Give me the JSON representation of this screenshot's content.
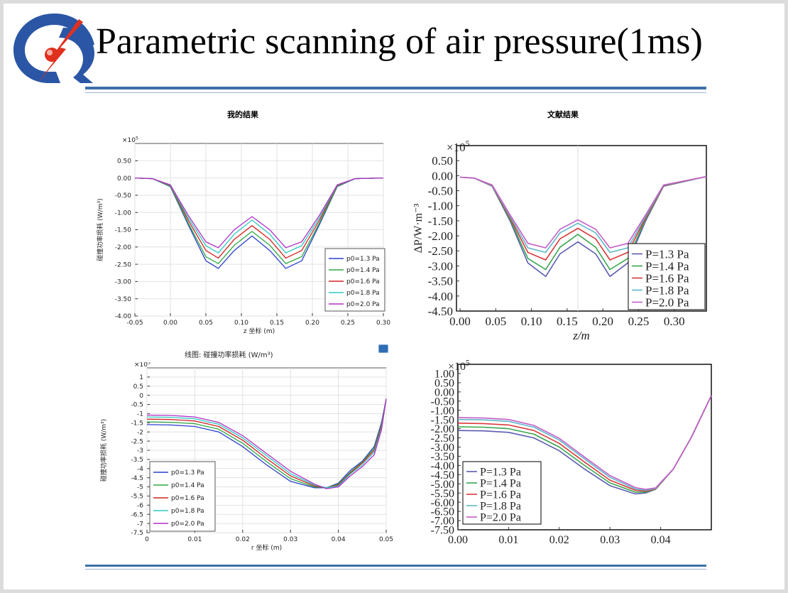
{
  "title": "Parametric scanning of air pressure(1ms)",
  "headings": {
    "left": "我的结果",
    "right": "文献结果"
  },
  "caption_top_left": "线图: 碰撞功率损耗 (W/m³)",
  "colors": {
    "rule": "#3f6fa8",
    "logo_blue": "#2b56a6",
    "logo_red": "#e0301e"
  },
  "chart_data": [
    {
      "type": "line",
      "id": "top-left",
      "multiplier": "×10",
      "multiplier_exp": "5",
      "xlabel": "z 坐标 (m)",
      "ylabel": "碰撞功率损耗 (W/m³)",
      "xlim": [
        -0.05,
        0.3
      ],
      "ylim": [
        -4.0,
        1.0
      ],
      "xticks": [
        "-0.05",
        "0.00",
        "0.05",
        "0.10",
        "0.15",
        "0.20",
        "0.25",
        "0.30"
      ],
      "yticks": [
        "0.50",
        "0.00",
        "-0.50",
        "-1.00",
        "-1.50",
        "-2.00",
        "-2.50",
        "-3.00",
        "-3.50",
        "-4.00"
      ],
      "legend_position": "lower-right",
      "x": [
        -0.05,
        -0.025,
        0.0,
        0.025,
        0.05,
        0.0675,
        0.09,
        0.115,
        0.14,
        0.1625,
        0.185,
        0.21,
        0.235,
        0.26,
        0.3
      ],
      "series": [
        {
          "name": "p0=1.3 Pa",
          "color": "#2b3fcf",
          "values": [
            0,
            -0.02,
            -0.25,
            -1.35,
            -2.4,
            -2.62,
            -2.1,
            -1.68,
            -2.1,
            -2.62,
            -2.4,
            -1.35,
            -0.25,
            -0.02,
            0
          ]
        },
        {
          "name": "p0=1.4 Pa",
          "color": "#2ea843",
          "values": [
            0,
            -0.02,
            -0.24,
            -1.3,
            -2.28,
            -2.48,
            -1.95,
            -1.55,
            -1.95,
            -2.48,
            -2.28,
            -1.3,
            -0.24,
            -0.02,
            0
          ]
        },
        {
          "name": "p0=1.6 Pa",
          "color": "#d42222",
          "values": [
            0,
            -0.02,
            -0.22,
            -1.22,
            -2.1,
            -2.32,
            -1.78,
            -1.38,
            -1.78,
            -2.32,
            -2.1,
            -1.22,
            -0.22,
            -0.02,
            0
          ]
        },
        {
          "name": "p0=1.8 Pa",
          "color": "#2ec9c2",
          "values": [
            0,
            -0.02,
            -0.21,
            -1.15,
            -1.96,
            -2.17,
            -1.63,
            -1.22,
            -1.63,
            -2.17,
            -1.96,
            -1.15,
            -0.21,
            -0.02,
            0
          ]
        },
        {
          "name": "p0=2.0 Pa",
          "color": "#b02ec4",
          "values": [
            0,
            -0.02,
            -0.2,
            -1.08,
            -1.85,
            -2.02,
            -1.5,
            -1.12,
            -1.5,
            -2.02,
            -1.85,
            -1.08,
            -0.2,
            -0.02,
            0
          ]
        }
      ]
    },
    {
      "type": "line",
      "id": "top-right",
      "multiplier": "×10",
      "multiplier_exp": "5",
      "xlabel": "z/m",
      "ylabel": "ΔP/W·m⁻³",
      "xlim": [
        -0.005,
        0.345
      ],
      "ylim": [
        -4.5,
        1.0
      ],
      "xticks": [
        "0.00",
        "0.05",
        "0.10",
        "0.15",
        "0.20",
        "0.25",
        "0.30"
      ],
      "yticks": [
        "0.50",
        "0.00",
        "-0.50",
        "-1.00",
        "-1.50",
        "-2.00",
        "-2.50",
        "-3.00",
        "-3.50",
        "-4.00",
        "-4.50"
      ],
      "legend_position": "lower-right",
      "x": [
        0.0,
        0.02,
        0.045,
        0.07,
        0.095,
        0.12,
        0.14,
        0.165,
        0.19,
        0.21,
        0.235,
        0.26,
        0.285,
        0.345
      ],
      "series": [
        {
          "name": "P=1.3 Pa",
          "color": "#5b5bb0",
          "values": [
            -0.05,
            -0.08,
            -0.35,
            -1.5,
            -2.9,
            -3.35,
            -2.6,
            -2.2,
            -2.6,
            -3.35,
            -2.9,
            -1.5,
            -0.35,
            -0.03
          ]
        },
        {
          "name": "P=1.4 Pa",
          "color": "#3aa64e",
          "values": [
            -0.05,
            -0.08,
            -0.34,
            -1.45,
            -2.75,
            -3.12,
            -2.38,
            -1.95,
            -2.38,
            -3.12,
            -2.75,
            -1.45,
            -0.34,
            -0.03
          ]
        },
        {
          "name": "P=1.6 Pa",
          "color": "#d93a3a",
          "values": [
            -0.05,
            -0.08,
            -0.33,
            -1.4,
            -2.55,
            -2.8,
            -2.1,
            -1.75,
            -2.1,
            -2.8,
            -2.55,
            -1.4,
            -0.33,
            -0.03
          ]
        },
        {
          "name": "P=1.8 Pa",
          "color": "#5fb8c8",
          "values": [
            -0.05,
            -0.08,
            -0.32,
            -1.35,
            -2.4,
            -2.55,
            -1.9,
            -1.58,
            -1.9,
            -2.55,
            -2.4,
            -1.35,
            -0.32,
            -0.03
          ]
        },
        {
          "name": "P=2.0 Pa",
          "color": "#c45cc8",
          "values": [
            -0.05,
            -0.08,
            -0.31,
            -1.3,
            -2.25,
            -2.4,
            -1.78,
            -1.47,
            -1.78,
            -2.4,
            -2.25,
            -1.3,
            -0.31,
            -0.03
          ]
        }
      ]
    },
    {
      "type": "line",
      "id": "bottom-left",
      "multiplier": "×10",
      "multiplier_exp": "5",
      "xlabel": "r 坐标 (m)",
      "ylabel": "碰撞功率损耗 (W/m³)",
      "xlim": [
        0.0,
        0.05
      ],
      "ylim": [
        -7.5,
        1.5
      ],
      "xticks": [
        "0",
        "0.01",
        "0.02",
        "0.03",
        "0.04",
        "0.05"
      ],
      "yticks": [
        "1",
        "0.5",
        "0",
        "-0.5",
        "-1",
        "-1.5",
        "-2",
        "-2.5",
        "-3",
        "-3.5",
        "-4",
        "-4.5",
        "-5",
        "-5.5",
        "-6",
        "-6.5",
        "-7",
        "-7.5"
      ],
      "legend_position": "lower-left",
      "x": [
        0.0,
        0.005,
        0.01,
        0.015,
        0.02,
        0.025,
        0.03,
        0.035,
        0.0375,
        0.04,
        0.0425,
        0.045,
        0.0475,
        0.049,
        0.05
      ],
      "series": [
        {
          "name": "p0=1.3 Pa",
          "color": "#2b3fcf",
          "values": [
            -1.6,
            -1.62,
            -1.7,
            -2.0,
            -2.8,
            -3.8,
            -4.7,
            -5.05,
            -5.05,
            -4.8,
            -4.1,
            -3.6,
            -2.8,
            -1.5,
            -0.2
          ]
        },
        {
          "name": "p0=1.4 Pa",
          "color": "#2ea843",
          "values": [
            -1.45,
            -1.47,
            -1.55,
            -1.85,
            -2.62,
            -3.62,
            -4.55,
            -5.0,
            -5.05,
            -4.85,
            -4.2,
            -3.65,
            -2.9,
            -1.6,
            -0.2
          ]
        },
        {
          "name": "p0=1.6 Pa",
          "color": "#d42222",
          "values": [
            -1.3,
            -1.32,
            -1.4,
            -1.7,
            -2.45,
            -3.45,
            -4.4,
            -4.95,
            -5.05,
            -4.9,
            -4.25,
            -3.7,
            -3.0,
            -1.7,
            -0.2
          ]
        },
        {
          "name": "p0=1.8 Pa",
          "color": "#2ec9c2",
          "values": [
            -1.18,
            -1.2,
            -1.28,
            -1.58,
            -2.32,
            -3.3,
            -4.28,
            -4.9,
            -5.05,
            -4.95,
            -4.3,
            -3.8,
            -3.1,
            -1.8,
            -0.2
          ]
        },
        {
          "name": "p0=2.0 Pa",
          "color": "#b02ec4",
          "values": [
            -1.08,
            -1.1,
            -1.18,
            -1.48,
            -2.2,
            -3.18,
            -4.15,
            -4.85,
            -5.1,
            -5.0,
            -4.4,
            -3.9,
            -3.25,
            -1.9,
            -0.2
          ]
        }
      ]
    },
    {
      "type": "line",
      "id": "bottom-right",
      "multiplier": "×10",
      "multiplier_exp": "5",
      "xlabel": "",
      "ylabel": "",
      "xlim": [
        0.0,
        0.05
      ],
      "ylim": [
        -7.5,
        1.5
      ],
      "xticks": [
        "0.00",
        "0.01",
        "0.02",
        "0.03",
        "0.04"
      ],
      "yticks": [
        "1.00",
        "0.50",
        "0.00",
        "-0.50",
        "-1.00",
        "-1.50",
        "-2.00",
        "-2.50",
        "-3.00",
        "-3.50",
        "-4.00",
        "-4.50",
        "-5.00",
        "-5.50",
        "-6.00",
        "-6.50",
        "-7.00",
        "-7.50"
      ],
      "legend_position": "lower-left",
      "x": [
        0.0,
        0.005,
        0.01,
        0.015,
        0.02,
        0.025,
        0.03,
        0.035,
        0.037,
        0.039,
        0.0425,
        0.046,
        0.05
      ],
      "series": [
        {
          "name": "P=1.3 Pa",
          "color": "#5b5bb0",
          "values": [
            -2.1,
            -2.12,
            -2.2,
            -2.5,
            -3.2,
            -4.2,
            -5.1,
            -5.55,
            -5.5,
            -5.3,
            -4.2,
            -2.5,
            -0.2
          ]
        },
        {
          "name": "P=1.4 Pa",
          "color": "#3aa64e",
          "values": [
            -1.9,
            -1.92,
            -2.0,
            -2.3,
            -3.0,
            -4.0,
            -4.95,
            -5.45,
            -5.45,
            -5.3,
            -4.2,
            -2.5,
            -0.2
          ]
        },
        {
          "name": "P=1.6 Pa",
          "color": "#d93a3a",
          "values": [
            -1.7,
            -1.72,
            -1.8,
            -2.1,
            -2.8,
            -3.82,
            -4.8,
            -5.35,
            -5.4,
            -5.28,
            -4.2,
            -2.5,
            -0.2
          ]
        },
        {
          "name": "P=1.8 Pa",
          "color": "#5fb8c8",
          "values": [
            -1.5,
            -1.52,
            -1.6,
            -1.92,
            -2.62,
            -3.65,
            -4.65,
            -5.28,
            -5.35,
            -5.25,
            -4.2,
            -2.5,
            -0.2
          ]
        },
        {
          "name": "P=2.0 Pa",
          "color": "#c45cc8",
          "values": [
            -1.4,
            -1.42,
            -1.5,
            -1.82,
            -2.52,
            -3.55,
            -4.55,
            -5.2,
            -5.3,
            -5.22,
            -4.2,
            -2.5,
            -0.2
          ]
        }
      ]
    }
  ]
}
